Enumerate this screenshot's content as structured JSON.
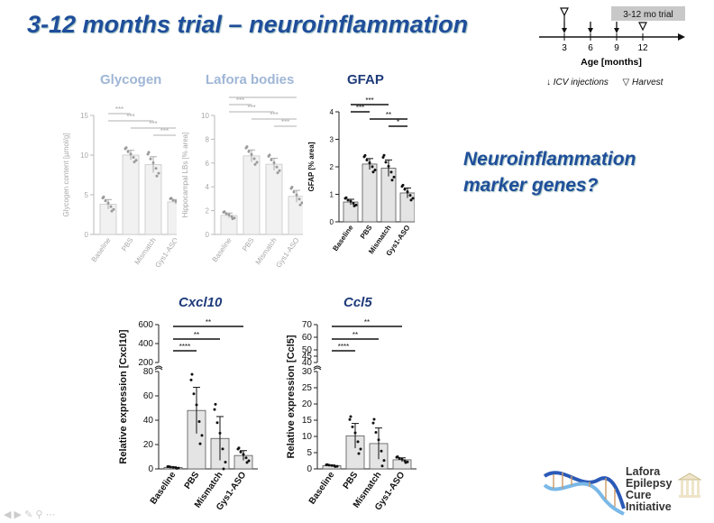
{
  "slide": {
    "title": "3-12 months trial – neuroinflammation",
    "side_text_line1": "Neuroinflammation",
    "side_text_line2": "marker genes?"
  },
  "timeline": {
    "trial_label": "3-12 mo trial",
    "ticks": [
      "3",
      "6",
      "9",
      "12"
    ],
    "axis_label": "Age [months]",
    "legend_injection": "ICV injections",
    "legend_harvest": "Harvest"
  },
  "logo": {
    "line1": "Lafora",
    "line2": "Epilepsy",
    "line3": "Cure",
    "line4": "Initiative"
  },
  "colors": {
    "title_blue": "#1f4e9a",
    "faded": "#9fb6d6",
    "bar_fill": "#e4e4e4"
  },
  "chart_data": [
    {
      "id": "glycogen",
      "type": "bar",
      "title": "Glycogen",
      "ylabel": "Glycogen content [µmol/g]",
      "categories": [
        "Baseline",
        "PBS",
        "Mismatch",
        "Gys1-ASO"
      ],
      "values": [
        3.8,
        10.0,
        8.8,
        4.1
      ],
      "errors": [
        0.6,
        0.6,
        1.0,
        0.3
      ],
      "ylim": [
        0,
        15
      ],
      "yticks": [
        "0",
        "5",
        "10",
        "15"
      ],
      "significance": [
        "***",
        "***",
        "***",
        "***"
      ],
      "faded": true
    },
    {
      "id": "lafora",
      "type": "bar",
      "title": "Lafora bodies",
      "ylabel": "Hippocampal LBs [% area]",
      "categories": [
        "Baseline",
        "PBS",
        "Mismatch",
        "Gys1-ASO"
      ],
      "values": [
        1.6,
        6.6,
        5.9,
        3.2
      ],
      "errors": [
        0.2,
        0.5,
        0.5,
        0.5
      ],
      "ylim": [
        0,
        10
      ],
      "yticks": [
        "0",
        "2",
        "4",
        "6",
        "8",
        "10"
      ],
      "significance": [
        "**",
        "***",
        "***",
        "***",
        "***"
      ],
      "faded": true
    },
    {
      "id": "gfap",
      "type": "bar",
      "title": "GFAP",
      "ylabel": "GFAP [% area]",
      "categories": [
        "Baseline",
        "PBS",
        "Mismatch",
        "Gys1-ASO"
      ],
      "values": [
        0.72,
        2.1,
        1.95,
        1.05
      ],
      "errors": [
        0.1,
        0.2,
        0.3,
        0.18
      ],
      "ylim": [
        0,
        4
      ],
      "yticks": [
        "0",
        "1",
        "2",
        "3",
        "4"
      ],
      "significance": [
        "***",
        "***",
        "**",
        "*"
      ],
      "faded": false
    },
    {
      "id": "cxcl10",
      "type": "bar",
      "title": "Cxcl10",
      "ylabel": "Relative expression [Cxcl10]",
      "categories": [
        "Baseline",
        "PBS",
        "Mismatch",
        "Gys1-ASO"
      ],
      "values": [
        1.2,
        48,
        25,
        11
      ],
      "errors": [
        0.5,
        19,
        18,
        4
      ],
      "ylim": [
        0,
        80
      ],
      "yticks": [
        "0",
        "20",
        "40",
        "60",
        "80"
      ],
      "upper_yticks": [
        "200",
        "400",
        "600"
      ],
      "significance": [
        "**",
        "**",
        "****"
      ],
      "faded": false
    },
    {
      "id": "ccl5",
      "type": "bar",
      "title": "Ccl5",
      "ylabel": "Relative expression [Ccl5]",
      "categories": [
        "Baseline",
        "PBS",
        "Mismatch",
        "Gys1-ASO"
      ],
      "values": [
        1.0,
        10.2,
        7.8,
        2.8
      ],
      "errors": [
        0.2,
        3.8,
        4.8,
        0.6
      ],
      "ylim": [
        0,
        30
      ],
      "yticks": [
        "0",
        "5",
        "10",
        "15",
        "20",
        "25",
        "30"
      ],
      "upper_yticks": [
        "40",
        "45",
        "50",
        "60",
        "70"
      ],
      "significance": [
        "**",
        "**",
        "****"
      ],
      "faded": false
    }
  ]
}
